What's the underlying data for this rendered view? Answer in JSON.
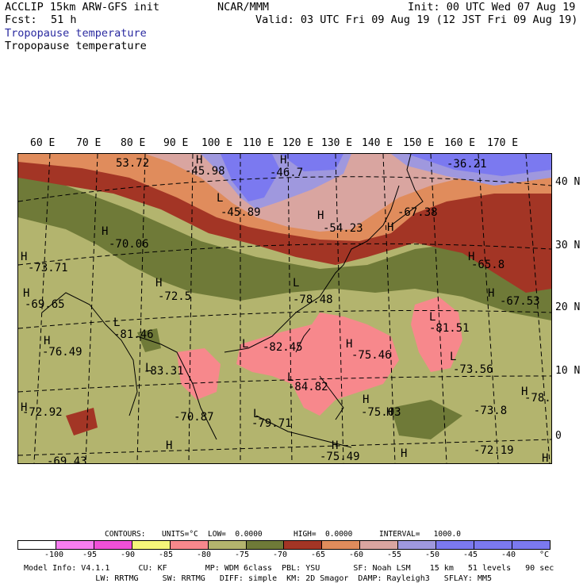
{
  "header": {
    "model": "ACCLIP 15km ARW-GFS init",
    "org": "NCAR/MMM",
    "init": "Init: 00 UTC Wed 07 Aug 19",
    "fcst_label": "Fcst:",
    "fcst_value": "51 h",
    "valid": "Valid: 03 UTC Fri 09 Aug 19 (12 JST Fri 09 Aug 19)",
    "field_title_1": "Tropopause temperature",
    "field_title_2": "Tropopause temperature"
  },
  "colors": {
    "cold_pink": "#f7888c",
    "olive_light": "#b3b46e",
    "olive_dark": "#6f7a38",
    "dark_red": "#a33525",
    "orange": "#e08c5c",
    "rose": "#d9a5a0",
    "lavender": "#9f98de",
    "blue": "#7b79f0"
  },
  "lon_labels": [
    "60 E",
    "70 E",
    "80 E",
    "90 E",
    "100 E",
    "110 E",
    "120 E",
    "130 E",
    "140 E",
    "150 E",
    "160 E",
    "170 E"
  ],
  "lat_labels": [
    "40 N",
    "30 N",
    "20 N",
    "10 N",
    "0"
  ],
  "map_labels": [
    {
      "t": "53.72"
    },
    {
      "t": "H"
    },
    {
      "t": "-45.98"
    },
    {
      "t": "H"
    },
    {
      "t": "-46.7"
    },
    {
      "t": "-36.21"
    },
    {
      "t": "L"
    },
    {
      "t": "-45.89"
    },
    {
      "t": "H"
    },
    {
      "t": "-67.38"
    },
    {
      "t": "H"
    },
    {
      "t": "-54.23"
    },
    {
      "t": "H"
    },
    {
      "t": "-70.06"
    },
    {
      "t": "H"
    },
    {
      "t": "-73.71"
    },
    {
      "t": "H"
    },
    {
      "t": "-65.8"
    },
    {
      "t": "H"
    },
    {
      "t": "-72.5"
    },
    {
      "t": "L"
    },
    {
      "t": "-78.48"
    },
    {
      "t": "H"
    },
    {
      "t": "-69.65"
    },
    {
      "t": "H"
    },
    {
      "t": "-67.53"
    },
    {
      "t": "L"
    },
    {
      "t": "-81.46"
    },
    {
      "t": "L"
    },
    {
      "t": "-81.51"
    },
    {
      "t": "L"
    },
    {
      "t": "-82.45"
    },
    {
      "t": "H"
    },
    {
      "t": "-75.46"
    },
    {
      "t": "H"
    },
    {
      "t": "-76.49"
    },
    {
      "t": "L"
    },
    {
      "t": "-73.56"
    },
    {
      "t": "L"
    },
    {
      "t": "-83.31"
    },
    {
      "t": "L"
    },
    {
      "t": "-84.82"
    },
    {
      "t": "H"
    },
    {
      "t": "-72.92"
    },
    {
      "t": "H"
    },
    {
      "t": "-75.03"
    },
    {
      "t": "H"
    },
    {
      "t": "-78."
    },
    {
      "t": "-70.87"
    },
    {
      "t": "L"
    },
    {
      "t": "-79.71"
    },
    {
      "t": "H"
    },
    {
      "t": "-73.8"
    },
    {
      "t": "H"
    },
    {
      "t": "-75.49"
    },
    {
      "t": "H"
    },
    {
      "t": "H"
    },
    {
      "t": "-72.19"
    },
    {
      "t": "-69.43"
    },
    {
      "t": "H"
    }
  ],
  "contours_info": {
    "contours": "CONTOURS:",
    "units": "UNITS=°C",
    "low": "LOW=  0.0000",
    "high": "HIGH=  0.0000",
    "interval": "INTERVAL=   1000.0"
  },
  "colorbar": {
    "colors": [
      "#ffffff",
      "#f77ef0",
      "#f050d8",
      "#f5f57a",
      "#f7888c",
      "#b3b46e",
      "#6f7a38",
      "#a33525",
      "#e08c5c",
      "#d9a5a0",
      "#9f98de",
      "#7b79f0",
      "#7b79f0",
      "#7b79f0"
    ],
    "ticks": [
      "-100",
      "-95",
      "-90",
      "-85",
      "-80",
      "-75",
      "-70",
      "-65",
      "-60",
      "-55",
      "-50",
      "-45",
      "-40",
      "°C"
    ]
  },
  "model_info": {
    "line1": "Model Info: V4.1.1      CU: KF        MP: WDM 6class  PBL: YSU       SF: Noah LSM    15 km   51 levels   90 sec",
    "line2": "               LW: RRTMG     SW: RRTMG   DIFF: simple  KM: 2D Smagor  DAMP: Rayleigh3   SFLAY: MM5"
  }
}
